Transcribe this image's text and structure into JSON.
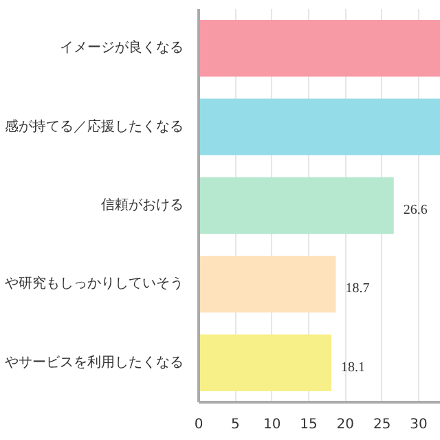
{
  "chart_data": {
    "type": "bar",
    "orientation": "horizontal",
    "categories": [
      "イメージが良くなる",
      "感が持てる／応援したくなる",
      "信頼がおける",
      "や研究もしっかりしていそう",
      "やサービスを利用したくなる"
    ],
    "values": [
      33,
      33,
      26.6,
      18.7,
      18.1
    ],
    "value_labels": [
      null,
      null,
      "26.6",
      "18.7",
      "18.1"
    ],
    "colors": [
      "#f89aa6",
      "#94dce8",
      "#b6e8cf",
      "#fde2bb",
      "#f7ef87"
    ],
    "xlim": [
      0,
      33
    ],
    "xticks": [
      0,
      5,
      10,
      15,
      20,
      25,
      30
    ],
    "grid": "x"
  }
}
